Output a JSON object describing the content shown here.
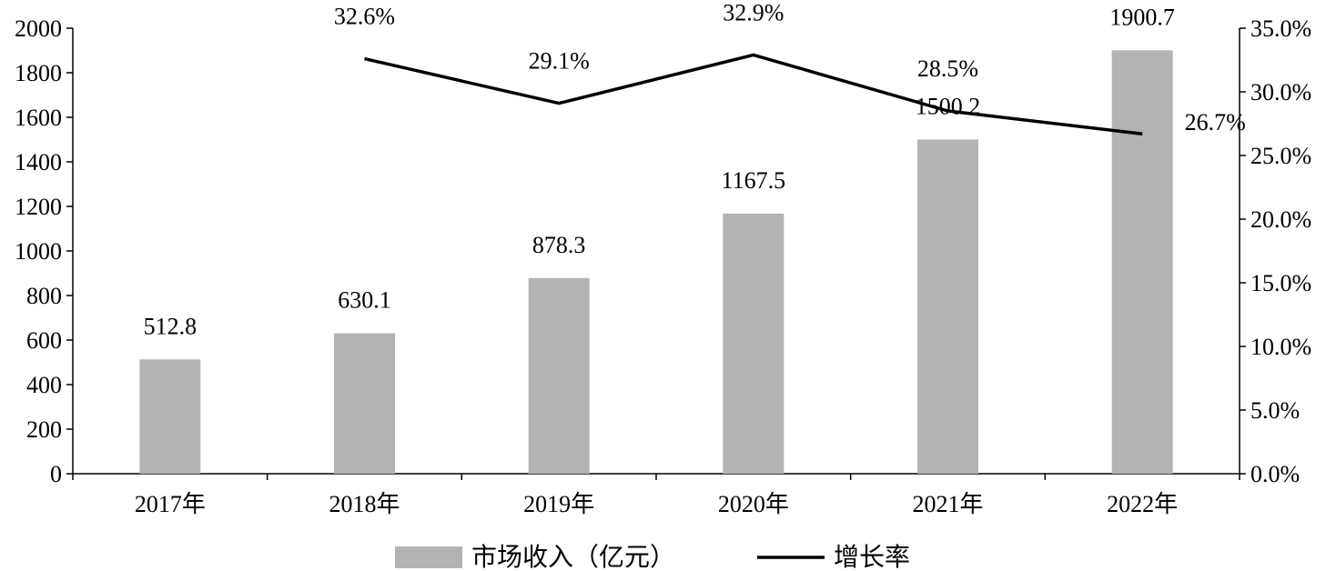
{
  "chart_data": {
    "type": "bar",
    "categories": [
      "2017年",
      "2018年",
      "2019年",
      "2020年",
      "2021年",
      "2022年"
    ],
    "series": [
      {
        "name": "市场收入（亿元）",
        "type": "bar",
        "axis": "left",
        "color": "#b3b3b3",
        "values": [
          512.8,
          630.1,
          878.3,
          1167.5,
          1500.2,
          1900.7
        ],
        "labels": [
          "512.8",
          "630.1",
          "878.3",
          "1167.5",
          "1500.2",
          "1900.7"
        ]
      },
      {
        "name": "增长率",
        "type": "line",
        "axis": "right",
        "color": "#000000",
        "values": [
          null,
          32.6,
          29.1,
          32.9,
          28.5,
          26.7
        ],
        "labels": [
          "",
          "32.6%",
          "29.1%",
          "32.9%",
          "28.5%",
          "26.7%"
        ]
      }
    ],
    "y_left": {
      "range": [
        0,
        2000
      ],
      "ticks": [
        "0",
        "200",
        "400",
        "600",
        "800",
        "1000",
        "1200",
        "1400",
        "1600",
        "1800",
        "2000"
      ]
    },
    "y_right": {
      "range": [
        0,
        35
      ],
      "ticks": [
        "0.0%",
        "5.0%",
        "10.0%",
        "15.0%",
        "20.0%",
        "25.0%",
        "30.0%",
        "35.0%"
      ]
    },
    "grid": false,
    "legend_position": "bottom"
  }
}
